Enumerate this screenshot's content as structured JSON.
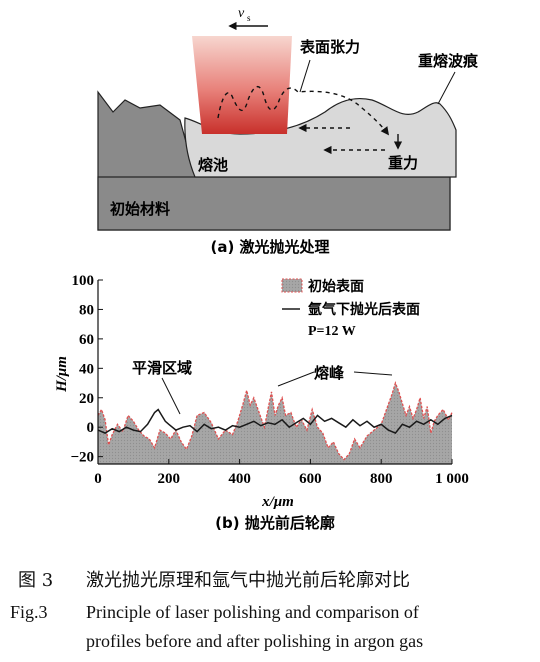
{
  "panel_a": {
    "velocity_label": "v",
    "velocity_sub": "s",
    "surface_tension_label": "表面张力",
    "remelt_label": "重熔波痕",
    "melt_pool_label": "熔池",
    "gravity_label": "重力",
    "initial_material_label": "初始材料",
    "caption": "(a) 激光抛光处理"
  },
  "panel_b": {
    "legend_initial": "初始表面",
    "legend_polished": "氩气下抛光后表面",
    "legend_power": "P=12 W",
    "annot_smooth": "平滑区域",
    "annot_peak": "熔峰",
    "caption": "(b) 抛光前后轮廓"
  },
  "chart_data": {
    "type": "line",
    "xlabel": "x/μm",
    "ylabel": "H/μm",
    "xlim": [
      0,
      1000
    ],
    "ylim": [
      -25,
      100
    ],
    "xticks": [
      0,
      200,
      400,
      600,
      800,
      1000
    ],
    "xtick_labels": [
      "0",
      "200",
      "400",
      "600",
      "800",
      "1 000"
    ],
    "yticks": [
      -20,
      0,
      20,
      40,
      60,
      80,
      100
    ],
    "ytick_labels": [
      "−20",
      "0",
      "20",
      "40",
      "60",
      "80",
      "100"
    ],
    "grid": false,
    "legend_position": "top-right",
    "series": [
      {
        "name": "初始表面",
        "style": "filled-area",
        "color": "#a6a6a6",
        "edge_color": "#e05050",
        "x": [
          0,
          10,
          20,
          30,
          40,
          55,
          70,
          85,
          100,
          115,
          130,
          145,
          160,
          175,
          190,
          205,
          220,
          235,
          250,
          265,
          280,
          300,
          320,
          340,
          360,
          380,
          395,
          410,
          420,
          430,
          440,
          455,
          470,
          480,
          490,
          500,
          510,
          520,
          530,
          545,
          560,
          575,
          590,
          605,
          620,
          635,
          650,
          665,
          680,
          695,
          710,
          725,
          740,
          760,
          780,
          800,
          815,
          830,
          840,
          850,
          860,
          870,
          880,
          890,
          900,
          910,
          920,
          930,
          940,
          950,
          960,
          975,
          990,
          1000
        ],
        "y": [
          8,
          12,
          5,
          -12,
          -5,
          2,
          -3,
          8,
          4,
          -2,
          -6,
          -8,
          -14,
          -2,
          -4,
          -8,
          -2,
          -10,
          -15,
          -6,
          8,
          10,
          3,
          -8,
          -2,
          -5,
          4,
          16,
          25,
          15,
          20,
          10,
          0,
          12,
          24,
          8,
          15,
          20,
          8,
          10,
          0,
          5,
          -2,
          12,
          0,
          -4,
          -14,
          -10,
          -18,
          -22,
          -18,
          -8,
          -14,
          -6,
          -2,
          2,
          12,
          22,
          30,
          24,
          16,
          8,
          14,
          6,
          12,
          20,
          6,
          14,
          -4,
          4,
          8,
          12,
          5,
          10
        ]
      },
      {
        "name": "氩气下抛光后表面",
        "style": "line",
        "color": "#1a1a1a",
        "x": [
          0,
          20,
          40,
          60,
          80,
          100,
          120,
          140,
          150,
          160,
          170,
          180,
          190,
          200,
          220,
          240,
          260,
          280,
          300,
          320,
          340,
          360,
          380,
          400,
          420,
          440,
          460,
          480,
          500,
          520,
          540,
          560,
          580,
          600,
          620,
          640,
          660,
          680,
          700,
          720,
          740,
          760,
          780,
          800,
          820,
          840,
          860,
          880,
          900,
          920,
          940,
          960,
          980,
          1000
        ],
        "y": [
          -2,
          -4,
          -1,
          -3,
          0,
          -2,
          -3,
          2,
          6,
          10,
          12,
          8,
          4,
          2,
          -2,
          0,
          1,
          -3,
          2,
          -1,
          0,
          -2,
          1,
          0,
          2,
          4,
          1,
          3,
          2,
          5,
          0,
          3,
          6,
          2,
          8,
          4,
          6,
          3,
          0,
          5,
          1,
          4,
          0,
          2,
          -2,
          -4,
          2,
          0,
          4,
          2,
          5,
          2,
          6,
          8
        ]
      }
    ]
  },
  "caption_cn": {
    "label": "图 3",
    "text": "激光抛光原理和氩气中抛光前后轮廓对比"
  },
  "caption_en": {
    "label": "Fig.3",
    "line1": "Principle of laser polishing and comparison of",
    "line2": "profiles before and after polishing in argon gas"
  }
}
